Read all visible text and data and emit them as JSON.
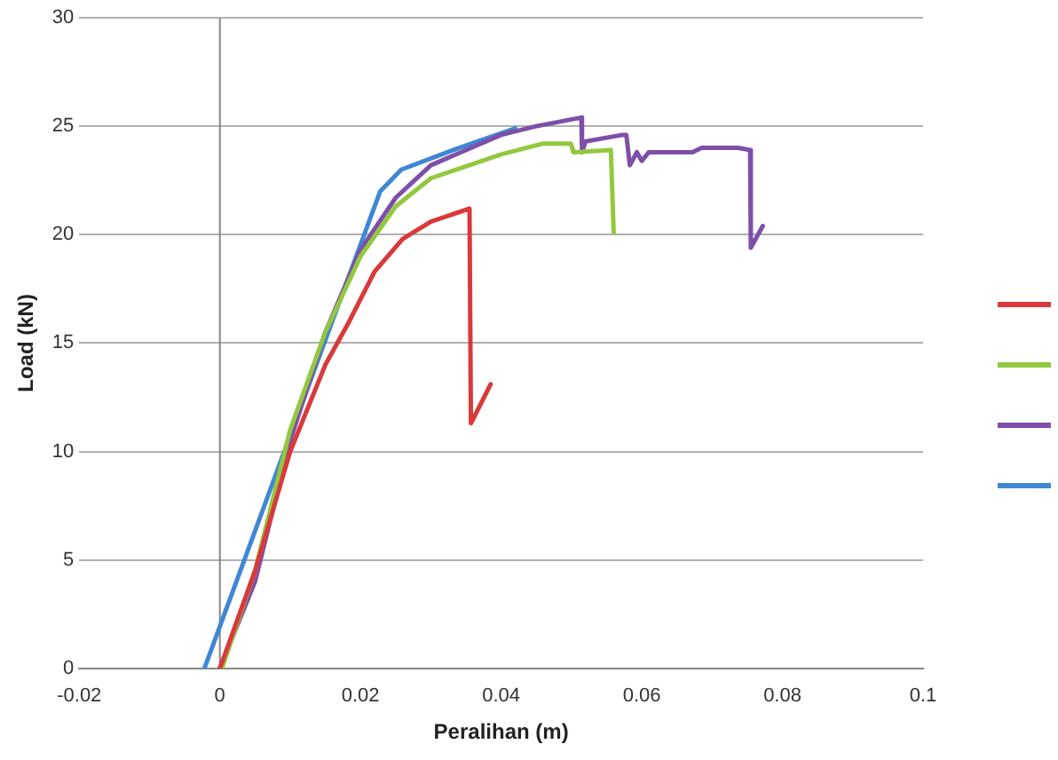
{
  "chart_data": {
    "type": "line",
    "xlabel": "Peralihan (m)",
    "ylabel": "Load (kN)",
    "xlim": [
      -0.02,
      0.1
    ],
    "xticks": [
      -0.02,
      0,
      0.02,
      0.04,
      0.06,
      0.08,
      0.1
    ],
    "ylim": [
      0,
      30
    ],
    "yticks": [
      0,
      5,
      10,
      15,
      20,
      25,
      30
    ],
    "grid": "y",
    "marker": "none",
    "line_style": "solid",
    "series": [
      {
        "color": "#d9393a",
        "x": [
          0,
          0.005,
          0.01,
          0.015,
          0.0184,
          0.022,
          0.026,
          0.03,
          0.0355,
          0.0357,
          0.0385
        ],
        "values": [
          0,
          4.5,
          10,
          14,
          16,
          18.3,
          19.8,
          20.6,
          21.2,
          11.3,
          13.1
        ]
      },
      {
        "color": "#92c83e",
        "x": [
          0.0003,
          0.005,
          0.01,
          0.015,
          0.02,
          0.025,
          0.03,
          0.04,
          0.046,
          0.0499,
          0.0503,
          0.0556,
          0.056
        ],
        "values": [
          0,
          4.5,
          11,
          15.5,
          19,
          21.3,
          22.6,
          23.7,
          24.2,
          24.2,
          23.8,
          23.9,
          20.1
        ]
      },
      {
        "color": "#7e4fa8",
        "x": [
          0,
          0.005,
          0.01,
          0.015,
          0.02,
          0.025,
          0.03,
          0.04,
          0.045,
          0.0514,
          0.0515,
          0.052,
          0.0573,
          0.0578,
          0.0583,
          0.0593,
          0.06,
          0.061,
          0.0672,
          0.0685,
          0.0737,
          0.0754,
          0.0755,
          0.0772
        ],
        "values": [
          0,
          4,
          10.5,
          15.5,
          19.3,
          21.7,
          23.2,
          24.6,
          25,
          25.4,
          23.8,
          24.3,
          24.6,
          24.6,
          23.2,
          23.8,
          23.4,
          23.8,
          23.8,
          24,
          24,
          23.9,
          19.4,
          20.4
        ]
      },
      {
        "color": "#3f87d6",
        "x": [
          -0.0022,
          0.0228,
          0.0258,
          0.034,
          0.042
        ],
        "values": [
          0,
          22,
          23,
          24,
          24.9
        ]
      }
    ]
  }
}
